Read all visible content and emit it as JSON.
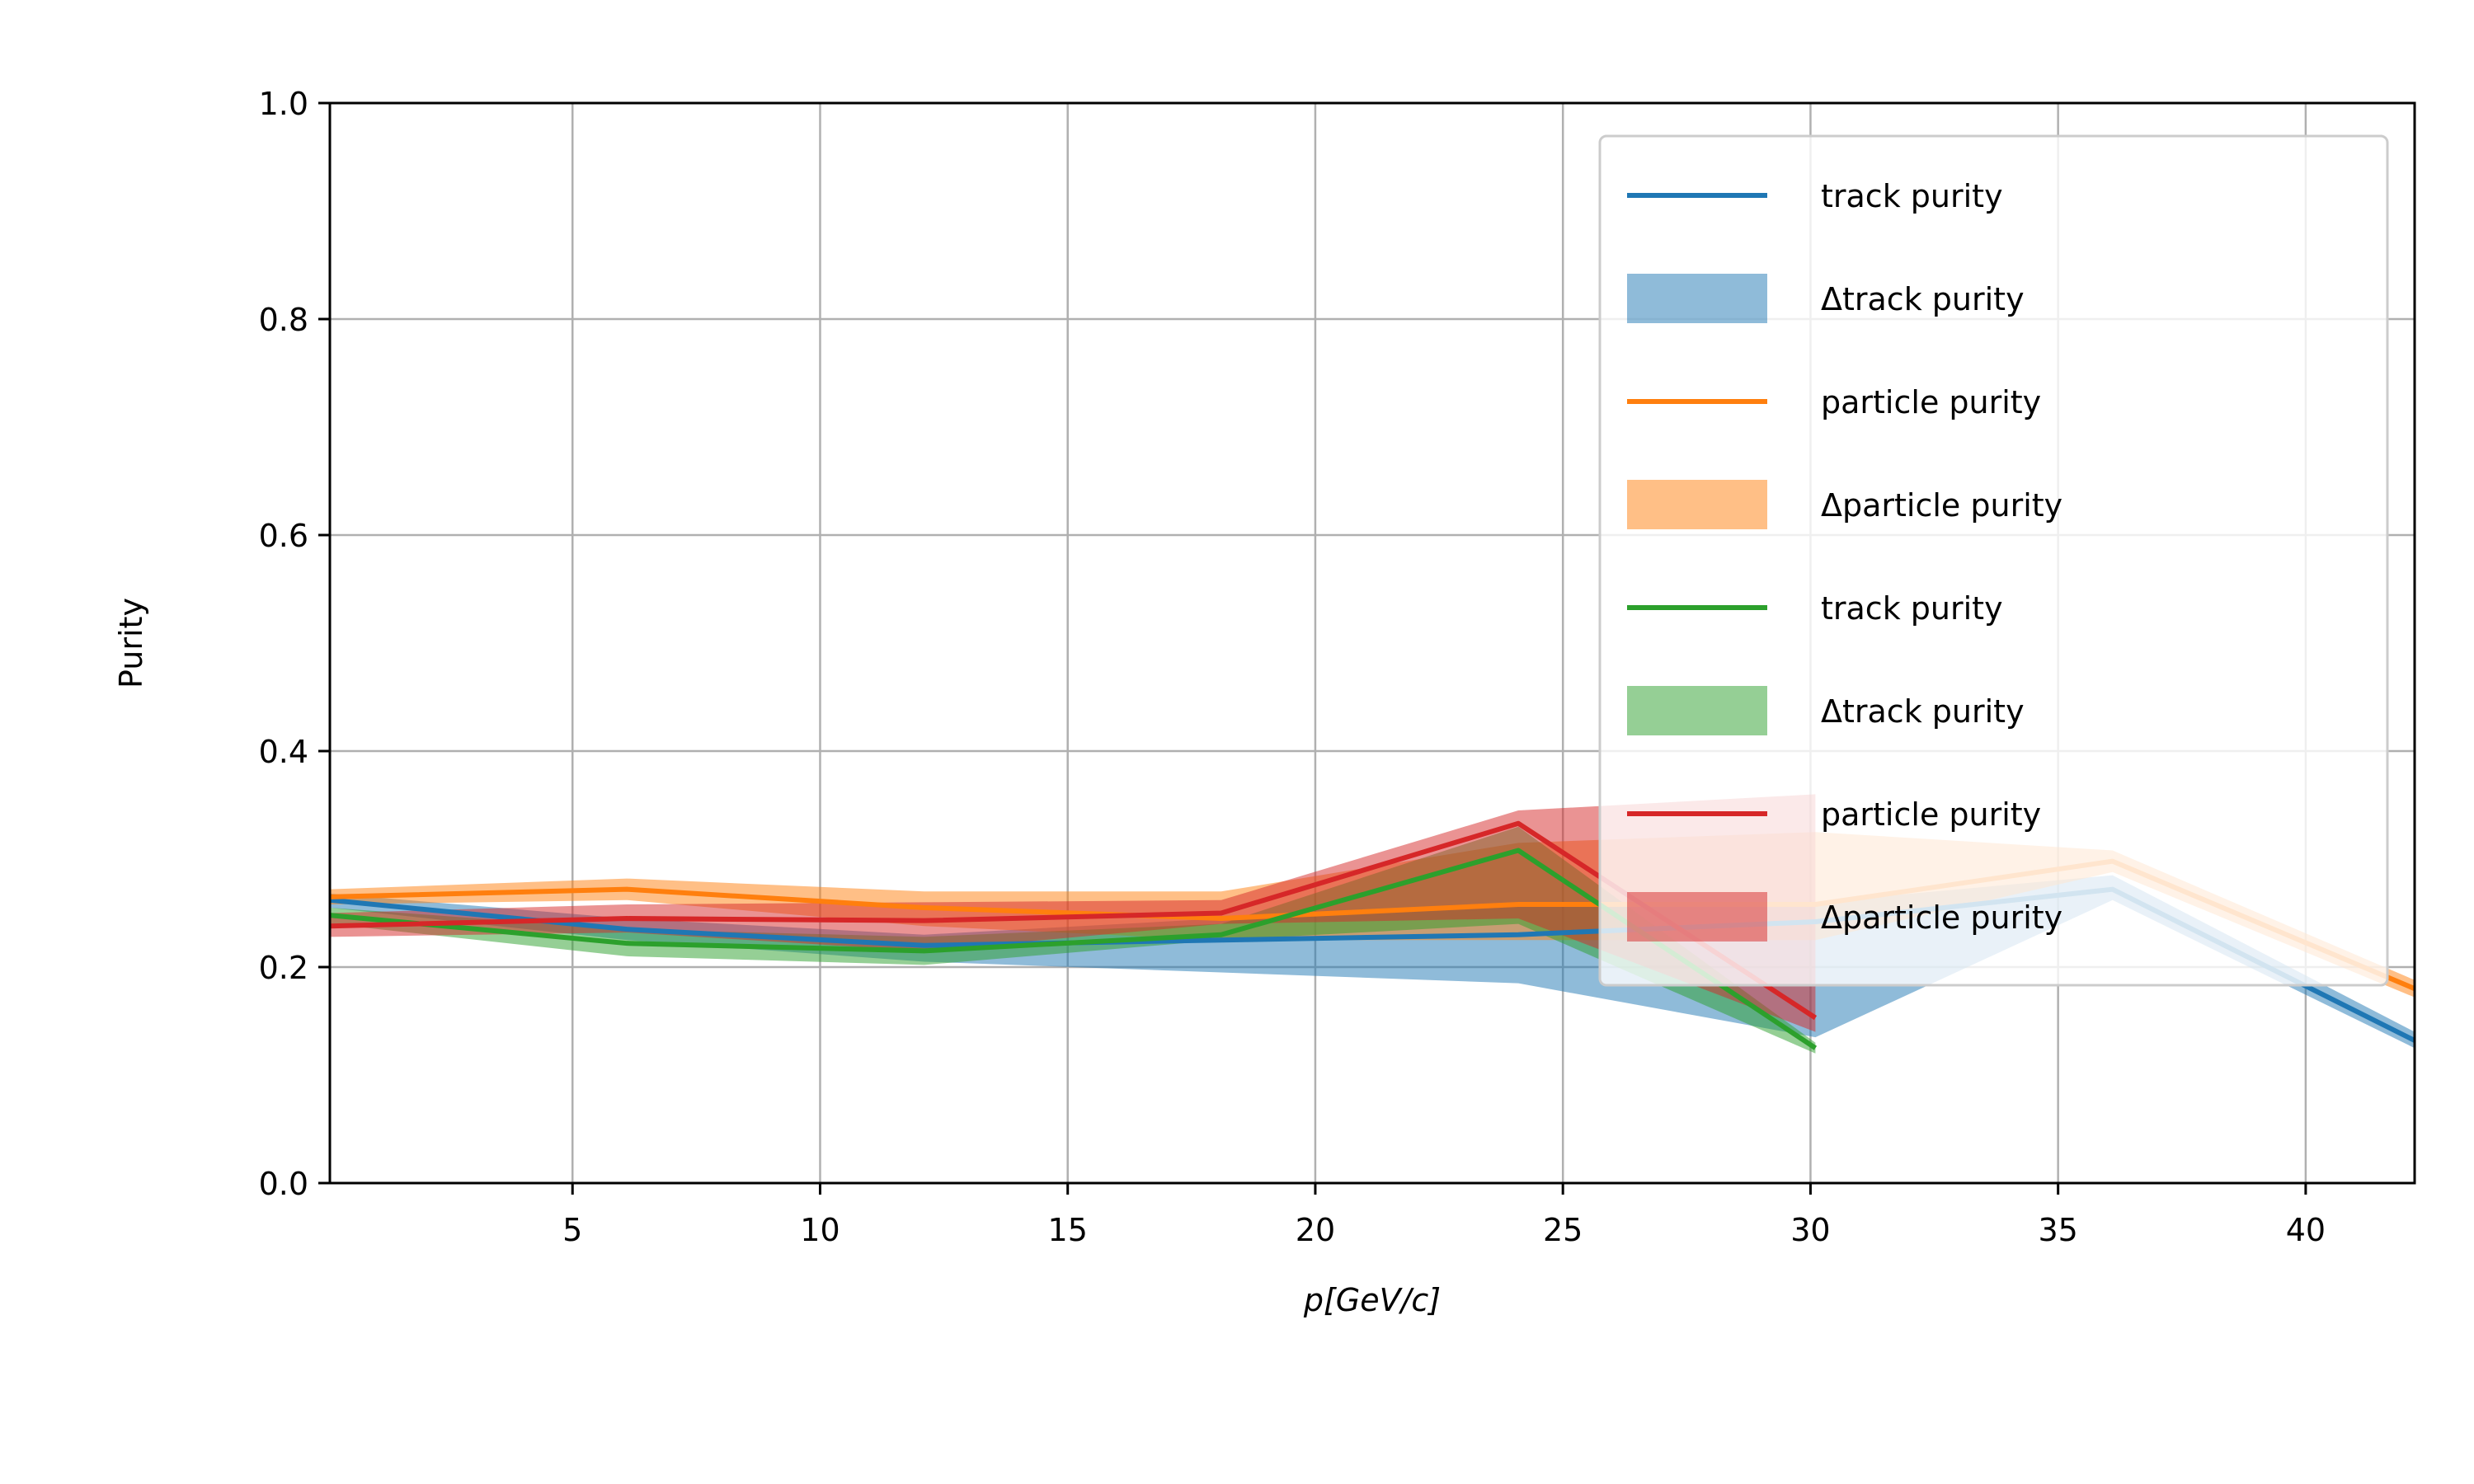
{
  "chart_data": {
    "type": "line",
    "title": "",
    "xlabel": "p[GeV/c]",
    "ylabel": "Purity",
    "xlim": [
      0.1,
      42.2
    ],
    "ylim": [
      0.0,
      1.0
    ],
    "xticks": [
      5,
      10,
      15,
      20,
      25,
      30,
      35,
      40
    ],
    "yticks": [
      0.0,
      0.2,
      0.4,
      0.6,
      0.8,
      1.0
    ],
    "xtick_labels": [
      "5",
      "10",
      "15",
      "20",
      "25",
      "30",
      "35",
      "40"
    ],
    "ytick_labels": [
      "0.0",
      "0.2",
      "0.4",
      "0.6",
      "0.8",
      "1.0"
    ],
    "grid": true,
    "legend_position": "upper right",
    "series": [
      {
        "name": "track purity",
        "band_name": "Δtrack purity",
        "color": "#1f77b4",
        "x": [
          0.1,
          6.1,
          12.1,
          18.1,
          24.1,
          30.1,
          36.1,
          42.2
        ],
        "values": [
          0.262,
          0.235,
          0.22,
          0.225,
          0.23,
          0.242,
          0.272,
          0.132
        ],
        "lower": [
          0.255,
          0.225,
          0.205,
          0.195,
          0.185,
          0.135,
          0.262,
          0.125
        ],
        "upper": [
          0.268,
          0.245,
          0.23,
          0.245,
          0.26,
          0.26,
          0.285,
          0.14
        ]
      },
      {
        "name": "particle purity",
        "band_name": "Δparticle purity",
        "color": "#ff7f0e",
        "x": [
          0.1,
          6.1,
          12.1,
          18.1,
          24.1,
          30.1,
          36.1,
          42.2
        ],
        "values": [
          0.265,
          0.272,
          0.255,
          0.245,
          0.258,
          0.258,
          0.298,
          0.18
        ],
        "lower": [
          0.258,
          0.262,
          0.238,
          0.225,
          0.225,
          0.225,
          0.288,
          0.172
        ],
        "upper": [
          0.272,
          0.282,
          0.27,
          0.27,
          0.315,
          0.325,
          0.308,
          0.188
        ]
      },
      {
        "name": "track purity",
        "band_name": "Δtrack purity",
        "color": "#2ca02c",
        "x": [
          0.1,
          6.1,
          12.1,
          18.1,
          24.1,
          30.1
        ],
        "values": [
          0.248,
          0.222,
          0.215,
          0.23,
          0.308,
          0.125
        ],
        "lower": [
          0.24,
          0.21,
          0.202,
          0.225,
          0.24,
          0.12
        ],
        "upper": [
          0.255,
          0.235,
          0.228,
          0.24,
          0.33,
          0.13
        ]
      },
      {
        "name": "particle purity",
        "band_name": "Δparticle purity",
        "color": "#d62728",
        "x": [
          0.1,
          6.1,
          12.1,
          18.1,
          24.1,
          30.1
        ],
        "values": [
          0.238,
          0.245,
          0.243,
          0.25,
          0.333,
          0.153
        ],
        "lower": [
          0.228,
          0.232,
          0.215,
          0.24,
          0.245,
          0.14
        ],
        "upper": [
          0.25,
          0.258,
          0.26,
          0.262,
          0.345,
          0.36
        ]
      }
    ]
  }
}
